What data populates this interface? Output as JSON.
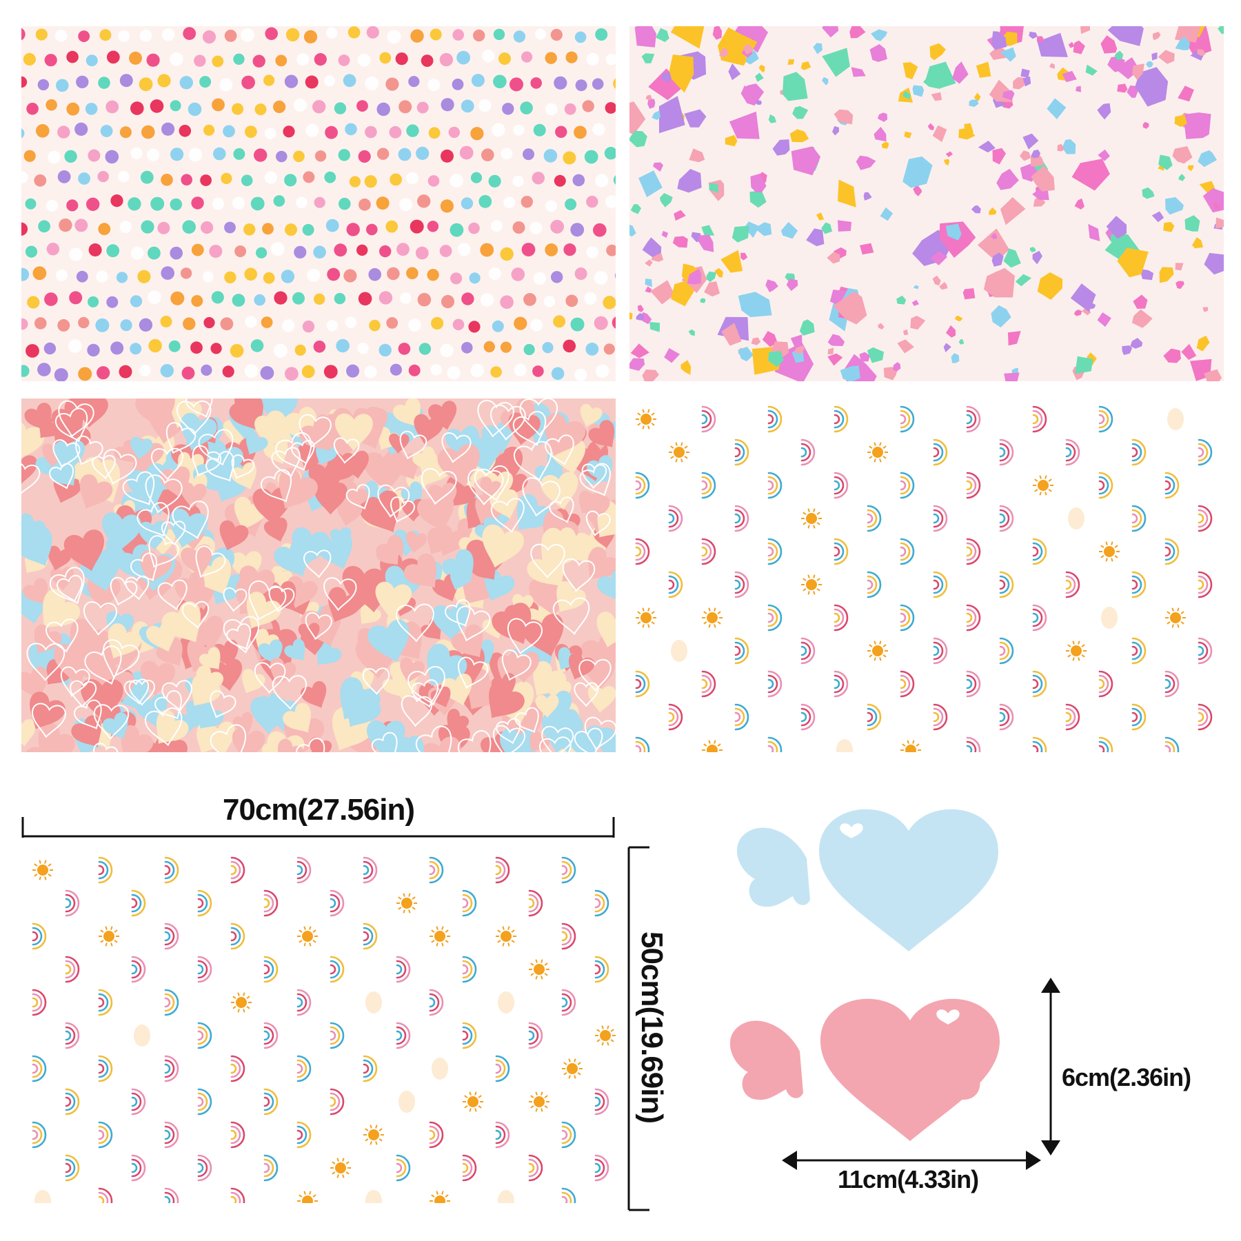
{
  "dimensions": {
    "sheet_width": "70cm(27.56in)",
    "sheet_height": "50cm(19.69in)",
    "heart_height": "6cm(2.36in)",
    "heart_width": "11cm(4.33in)"
  },
  "patterns": [
    "polka-dots",
    "terrazzo",
    "hearts",
    "rainbows",
    "rainbows"
  ],
  "colors": {
    "dot_palette": [
      "#f0508a",
      "#f6a2c6",
      "#5fd8be",
      "#f7a23b",
      "#fbc83a",
      "#a98be0",
      "#8fd2ef",
      "#f3958f",
      "#e8365e"
    ],
    "terrazzo_palette": [
      "#b889e6",
      "#f276c3",
      "#69dcb3",
      "#fcc328",
      "#f6a3b4",
      "#8cd2ef",
      "#e87fd8"
    ],
    "hearts_palette": [
      "#f08a8c",
      "#a8dcef",
      "#f6b9b6",
      "#fbe7c2"
    ],
    "rainbow_palette": [
      "#d9486c",
      "#3eaad1",
      "#f0bd3a",
      "#e98fb4",
      "#e0612b"
    ],
    "heart_tag_blue": "#c5e4f3",
    "heart_tag_pink": "#f3a6af"
  }
}
